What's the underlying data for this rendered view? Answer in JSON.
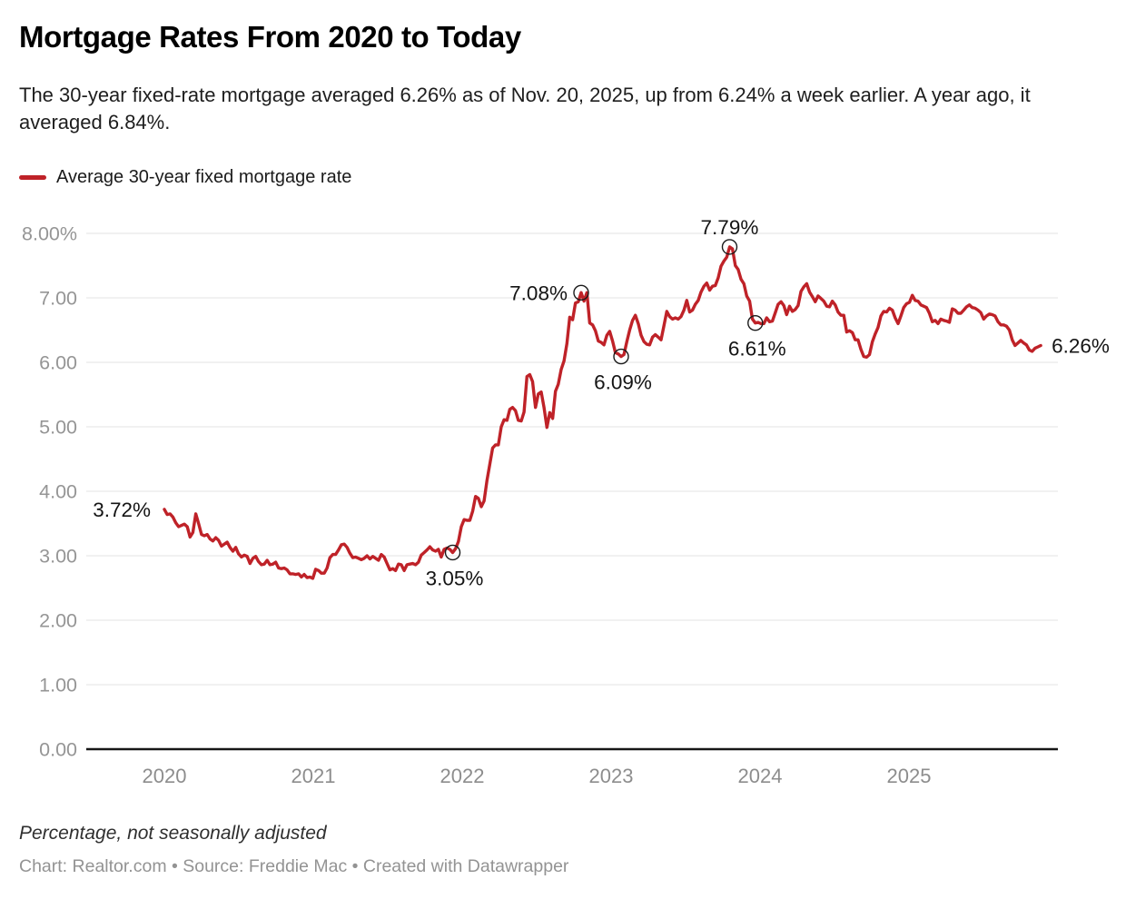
{
  "header": {
    "title": "Mortgage Rates From 2020 to Today",
    "description": "The 30-year fixed-rate mortgage averaged 6.26% as of Nov. 20, 2025, up from 6.24% a week earlier. A year ago, it averaged 6.84%."
  },
  "legend": {
    "label": "Average 30-year fixed mortgage rate",
    "color": "#bf2228"
  },
  "chart_data": {
    "type": "line",
    "title": "Mortgage Rates From 2020 to Today",
    "xlabel": "",
    "ylabel": "Percentage, not seasonally adjusted",
    "grid": true,
    "legend_position": "top-left",
    "y_axis": {
      "range": [
        0,
        8
      ],
      "ticks": [
        {
          "label": "8.00%",
          "value": 8
        },
        {
          "label": "7.00",
          "value": 7
        },
        {
          "label": "6.00",
          "value": 6
        },
        {
          "label": "5.00",
          "value": 5
        },
        {
          "label": "4.00",
          "value": 4
        },
        {
          "label": "3.00",
          "value": 3
        },
        {
          "label": "2.00",
          "value": 2
        },
        {
          "label": "1.00",
          "value": 1
        },
        {
          "label": "0.00",
          "value": 0
        }
      ]
    },
    "x_axis": {
      "ticks": [
        {
          "label": "2020",
          "value": 2020
        },
        {
          "label": "2021",
          "value": 2021
        },
        {
          "label": "2022",
          "value": 2022
        },
        {
          "label": "2023",
          "value": 2023
        },
        {
          "label": "2024",
          "value": 2024
        },
        {
          "label": "2025",
          "value": 2025
        }
      ]
    },
    "series": [
      {
        "name": "Average 30-year fixed mortgage rate",
        "color": "#bf2228",
        "cadence": "weekly",
        "start_year": 2020.0,
        "end_year": 2025.885,
        "values": [
          3.72,
          3.64,
          3.65,
          3.6,
          3.51,
          3.45,
          3.47,
          3.49,
          3.45,
          3.29,
          3.36,
          3.65,
          3.5,
          3.33,
          3.31,
          3.33,
          3.26,
          3.23,
          3.28,
          3.24,
          3.15,
          3.18,
          3.21,
          3.13,
          3.07,
          3.13,
          3.03,
          2.98,
          3.01,
          2.99,
          2.88,
          2.96,
          2.99,
          2.91,
          2.86,
          2.87,
          2.93,
          2.86,
          2.87,
          2.9,
          2.81,
          2.8,
          2.81,
          2.78,
          2.72,
          2.72,
          2.71,
          2.72,
          2.67,
          2.71,
          2.66,
          2.67,
          2.65,
          2.79,
          2.77,
          2.73,
          2.73,
          2.81,
          2.97,
          3.02,
          3.02,
          3.09,
          3.17,
          3.18,
          3.13,
          3.04,
          2.97,
          2.98,
          2.96,
          2.94,
          2.96,
          3.0,
          2.95,
          2.99,
          2.96,
          2.93,
          3.02,
          2.98,
          2.88,
          2.78,
          2.8,
          2.77,
          2.87,
          2.86,
          2.77,
          2.86,
          2.87,
          2.88,
          2.86,
          2.9,
          3.01,
          3.05,
          3.09,
          3.14,
          3.09,
          3.07,
          3.1,
          2.98,
          3.1,
          3.12,
          3.1,
          3.05,
          3.11,
          3.22,
          3.45,
          3.56,
          3.55,
          3.55,
          3.69,
          3.92,
          3.89,
          3.76,
          3.85,
          4.16,
          4.42,
          4.67,
          4.72,
          4.72,
          5.0,
          5.11,
          5.1,
          5.27,
          5.3,
          5.25,
          5.1,
          5.09,
          5.23,
          5.78,
          5.81,
          5.7,
          5.3,
          5.51,
          5.54,
          5.3,
          4.99,
          5.22,
          5.13,
          5.55,
          5.66,
          5.89,
          6.02,
          6.29,
          6.7,
          6.66,
          6.92,
          6.94,
          7.08,
          6.95,
          7.08,
          6.61,
          6.58,
          6.49,
          6.33,
          6.31,
          6.27,
          6.42,
          6.48,
          6.33,
          6.15,
          6.13,
          6.09,
          6.12,
          6.32,
          6.5,
          6.65,
          6.73,
          6.6,
          6.42,
          6.32,
          6.28,
          6.27,
          6.39,
          6.43,
          6.39,
          6.35,
          6.57,
          6.79,
          6.71,
          6.67,
          6.69,
          6.67,
          6.71,
          6.81,
          6.96,
          6.78,
          6.81,
          6.9,
          6.96,
          7.09,
          7.18,
          7.23,
          7.12,
          7.18,
          7.19,
          7.31,
          7.49,
          7.57,
          7.63,
          7.79,
          7.76,
          7.5,
          7.44,
          7.29,
          7.22,
          7.03,
          6.95,
          6.67,
          6.61,
          6.62,
          6.6,
          6.6,
          6.69,
          6.63,
          6.64,
          6.77,
          6.9,
          6.94,
          6.88,
          6.74,
          6.87,
          6.79,
          6.82,
          6.88,
          7.1,
          7.17,
          7.22,
          7.09,
          7.02,
          6.94,
          7.03,
          6.99,
          6.95,
          6.87,
          6.86,
          6.95,
          6.89,
          6.78,
          6.73,
          6.73,
          6.47,
          6.49,
          6.46,
          6.35,
          6.35,
          6.2,
          6.09,
          6.08,
          6.12,
          6.32,
          6.44,
          6.54,
          6.72,
          6.79,
          6.78,
          6.84,
          6.81,
          6.69,
          6.6,
          6.72,
          6.85,
          6.91,
          6.93,
          7.04,
          6.96,
          6.95,
          6.89,
          6.87,
          6.85,
          6.76,
          6.63,
          6.65,
          6.6,
          6.67,
          6.65,
          6.64,
          6.62,
          6.83,
          6.81,
          6.76,
          6.76,
          6.81,
          6.86,
          6.89,
          6.85,
          6.84,
          6.81,
          6.77,
          6.67,
          6.72,
          6.75,
          6.74,
          6.72,
          6.63,
          6.58,
          6.58,
          6.56,
          6.5,
          6.35,
          6.26,
          6.3,
          6.34,
          6.3,
          6.27,
          6.19,
          6.17,
          6.22,
          6.24,
          6.26
        ]
      }
    ],
    "annotations": [
      {
        "label": "3.72%",
        "index": 0,
        "value": 3.72,
        "placement": "left",
        "marker": false
      },
      {
        "label": "3.05%",
        "index": 101,
        "value": 3.05,
        "placement": "below",
        "marker": true
      },
      {
        "label": "7.08%",
        "index": 146,
        "value": 7.08,
        "placement": "left",
        "marker": true
      },
      {
        "label": "6.09%",
        "index": 160,
        "value": 6.09,
        "placement": "below",
        "marker": true
      },
      {
        "label": "7.79%",
        "index": 198,
        "value": 7.79,
        "placement": "above",
        "marker": true
      },
      {
        "label": "6.61%",
        "index": 207,
        "value": 6.61,
        "placement": "below",
        "marker": true
      },
      {
        "label": "6.26%",
        "index": 307,
        "value": 6.26,
        "placement": "right",
        "marker": false
      }
    ]
  },
  "footer": {
    "note": "Percentage, not seasonally adjusted",
    "byline": "Chart: Realtor.com • Source: Freddie Mac • Created with Datawrapper"
  }
}
